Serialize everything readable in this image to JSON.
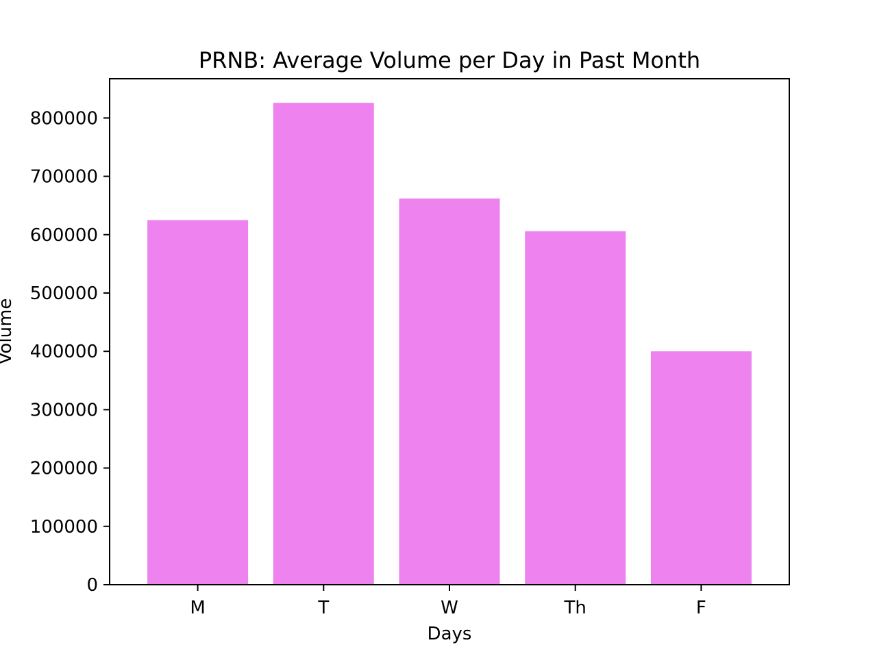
{
  "chart_data": {
    "type": "bar",
    "title": "PRNB: Average Volume per Day in Past Month",
    "xlabel": "Days",
    "ylabel": "Volume",
    "categories": [
      "M",
      "T",
      "W",
      "Th",
      "F"
    ],
    "values": [
      625000,
      826000,
      662000,
      606000,
      400000
    ],
    "ylim": [
      0,
      867300
    ],
    "yticks": [
      0,
      100000,
      200000,
      300000,
      400000,
      500000,
      600000,
      700000,
      800000
    ],
    "ytick_labels": [
      "0",
      "100000",
      "200000",
      "300000",
      "400000",
      "500000",
      "600000",
      "700000",
      "800000"
    ],
    "grid": false,
    "legend": "none",
    "bar_color": "#ee82ee"
  }
}
